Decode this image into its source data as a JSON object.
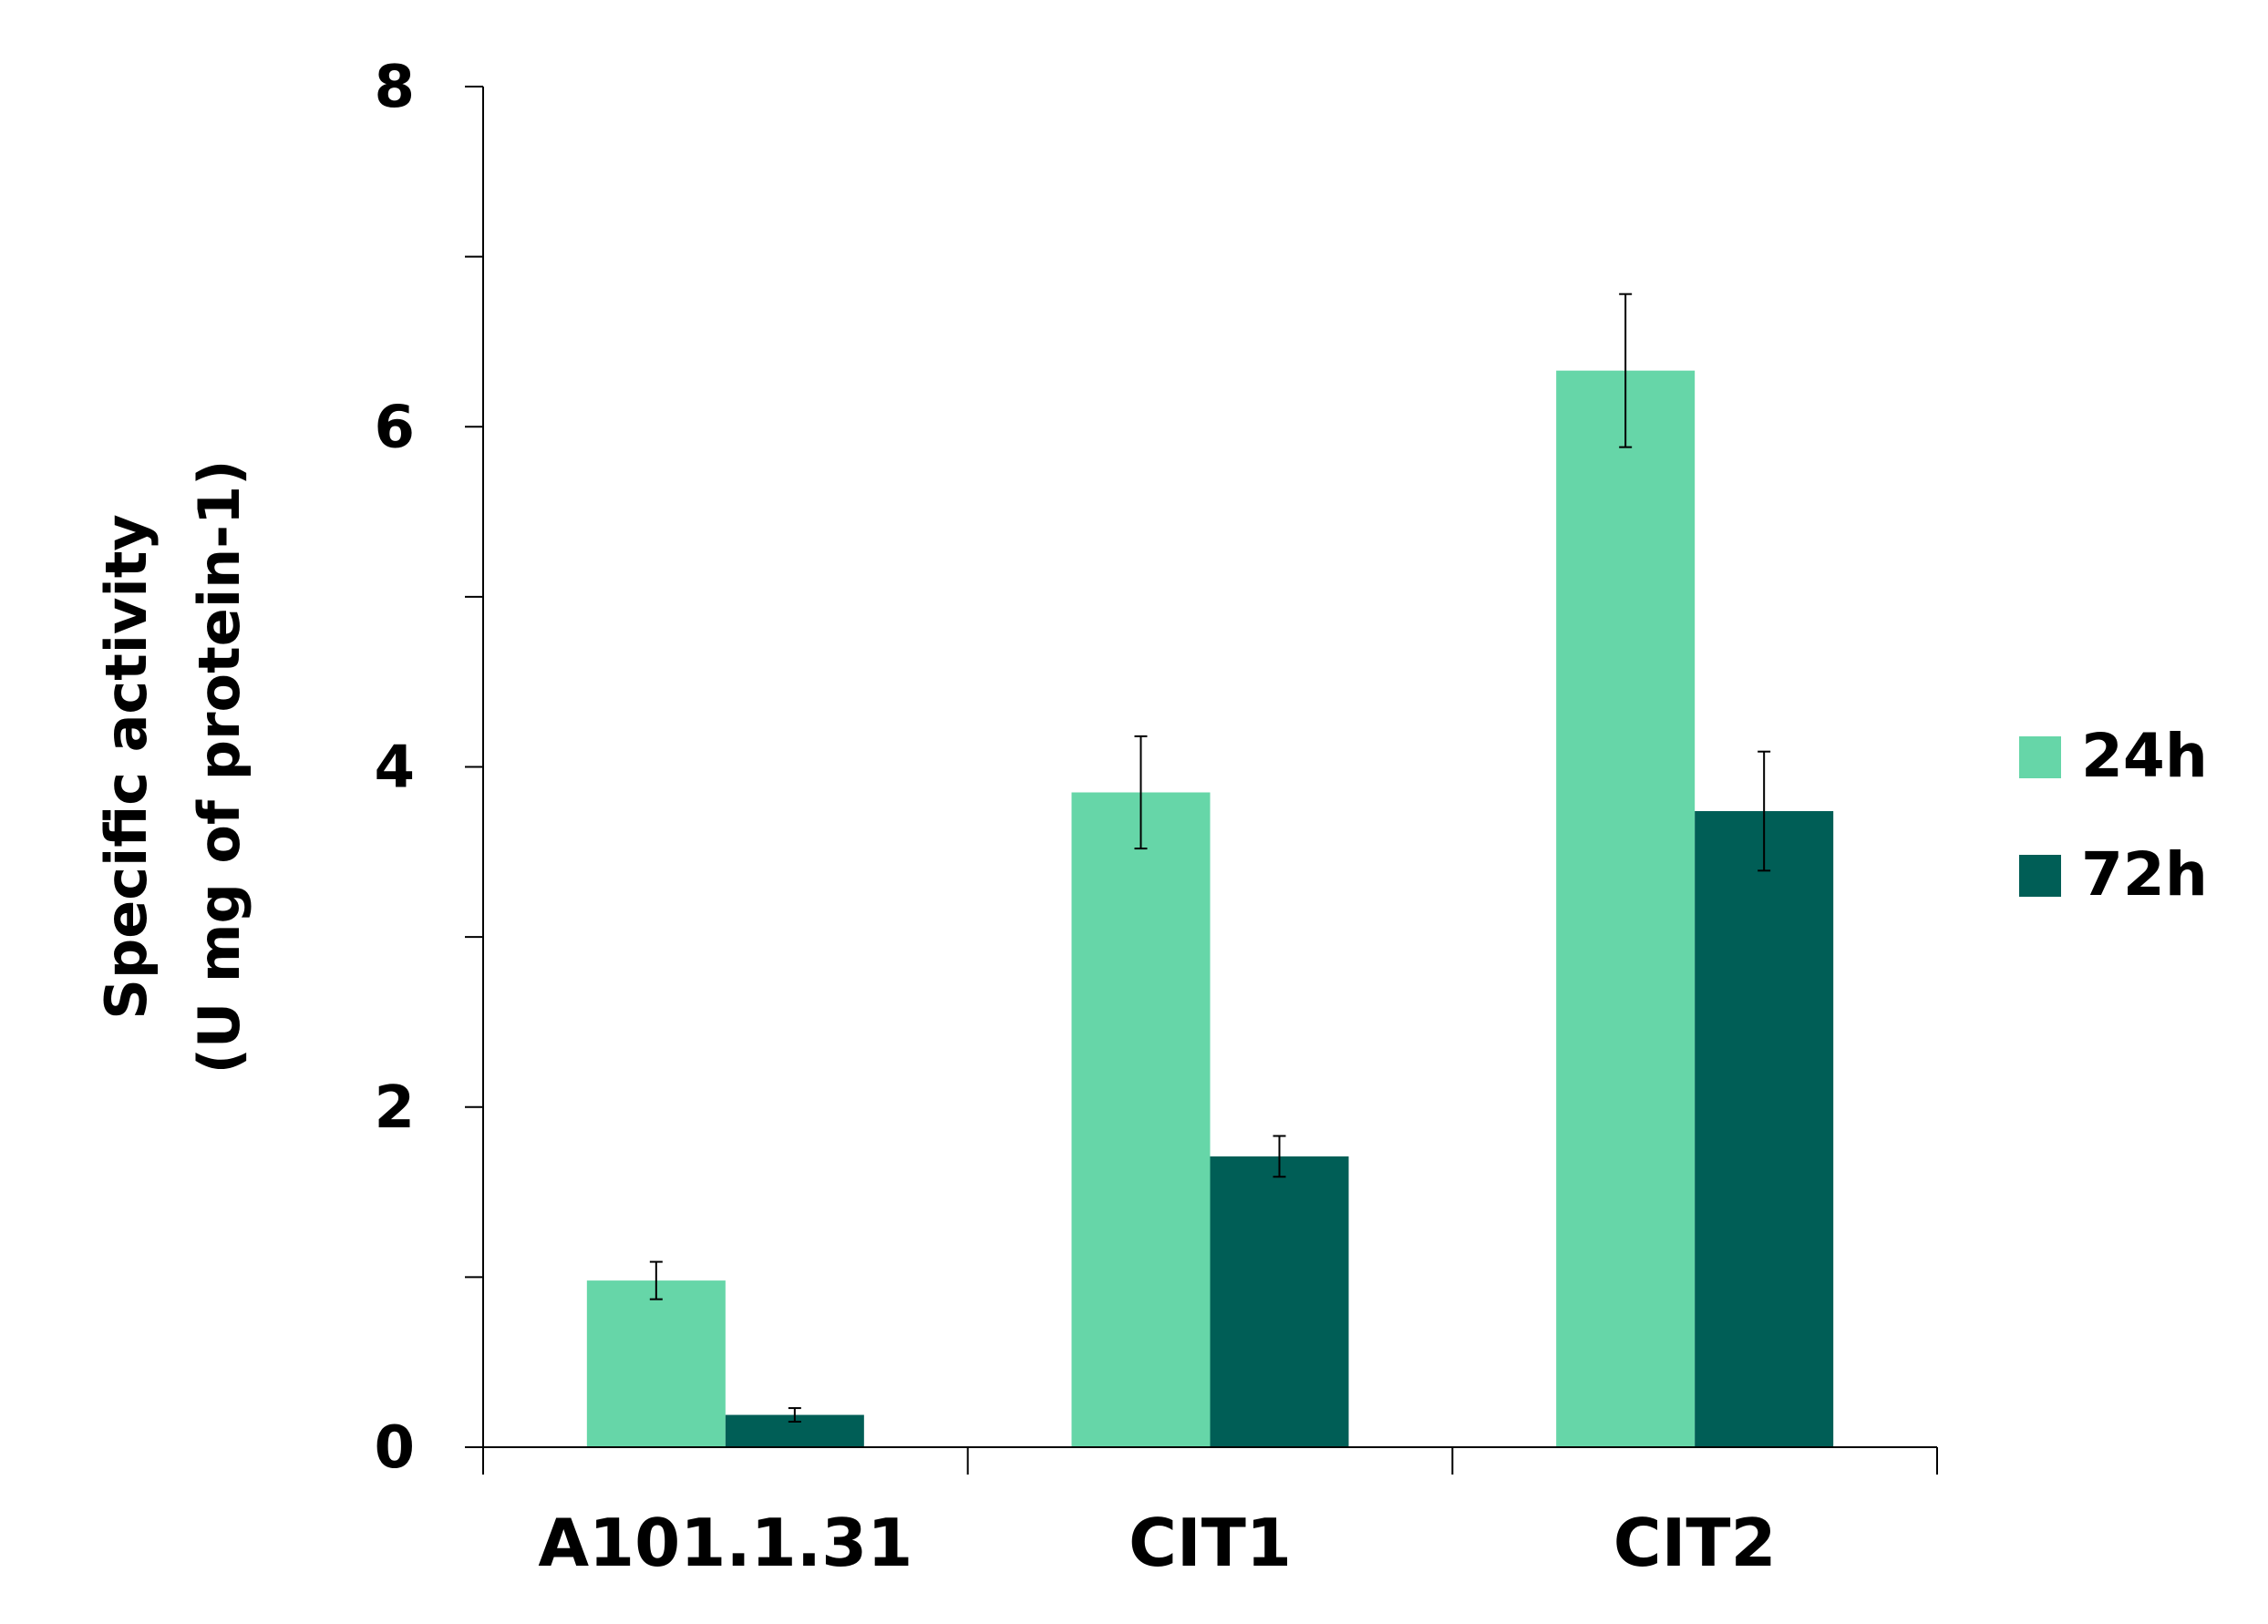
{
  "chart_data": {
    "type": "bar",
    "categories": [
      "A101.1.31",
      "CIT1",
      "CIT2"
    ],
    "series": [
      {
        "name": "24h",
        "values": [
          0.98,
          3.85,
          6.33
        ],
        "error": [
          0.11,
          0.33,
          0.45
        ],
        "color": "#66d6a8"
      },
      {
        "name": "72h",
        "values": [
          0.19,
          1.71,
          3.74
        ],
        "error": [
          0.04,
          0.12,
          0.35
        ],
        "color": "#005e56"
      }
    ],
    "ylabel_line1": "Specific activity",
    "ylabel_line2": "(U mg of protein-1)",
    "ylim": [
      0,
      8
    ],
    "yticks": [
      0,
      2,
      4,
      6,
      8
    ],
    "ytick_labels": [
      "0",
      "2",
      "4",
      "6",
      "8"
    ],
    "legend_position": "right",
    "grid": false
  }
}
